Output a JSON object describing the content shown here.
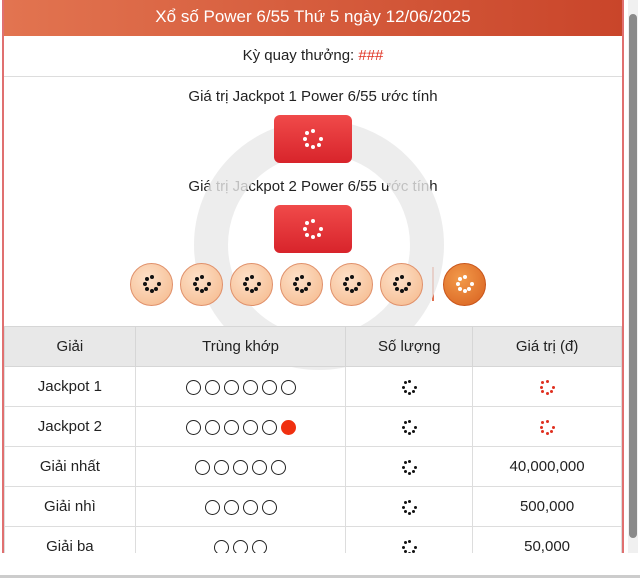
{
  "header": {
    "title": "Xổ số Power 6/55 Thứ 5 ngày 12/06/2025"
  },
  "draw": {
    "label": "Kỳ quay thưởng: ",
    "value": "###"
  },
  "jackpot1": {
    "label": "Giá trị Jackpot 1 Power 6/55 ước tính"
  },
  "jackpot2": {
    "label": "Giá trị Jackpot 2 Power 6/55 ước tính"
  },
  "balls": {
    "regular_count": 6,
    "power_count": 1,
    "state": "loading"
  },
  "table": {
    "headers": [
      "Giải",
      "Trùng khớp",
      "Số lượng",
      "Giá trị (đ)"
    ],
    "rows": [
      {
        "prize": "Jackpot 1",
        "match": 6,
        "power": false,
        "count": "loading",
        "value": "loading",
        "value_color": "#e03020"
      },
      {
        "prize": "Jackpot 2",
        "match": 5,
        "power": true,
        "count": "loading",
        "value": "loading",
        "value_color": "#e03020"
      },
      {
        "prize": "Giải nhất",
        "match": 5,
        "power": false,
        "count": "loading",
        "value": "40,000,000"
      },
      {
        "prize": "Giải nhì",
        "match": 4,
        "power": false,
        "count": "loading",
        "value": "500,000"
      },
      {
        "prize": "Giải ba",
        "match": 3,
        "power": false,
        "count": "loading",
        "value": "50,000"
      }
    ]
  },
  "colors": {
    "accent": "#d8242b",
    "header": "#c9452a",
    "power_ball": "#d8601f"
  }
}
